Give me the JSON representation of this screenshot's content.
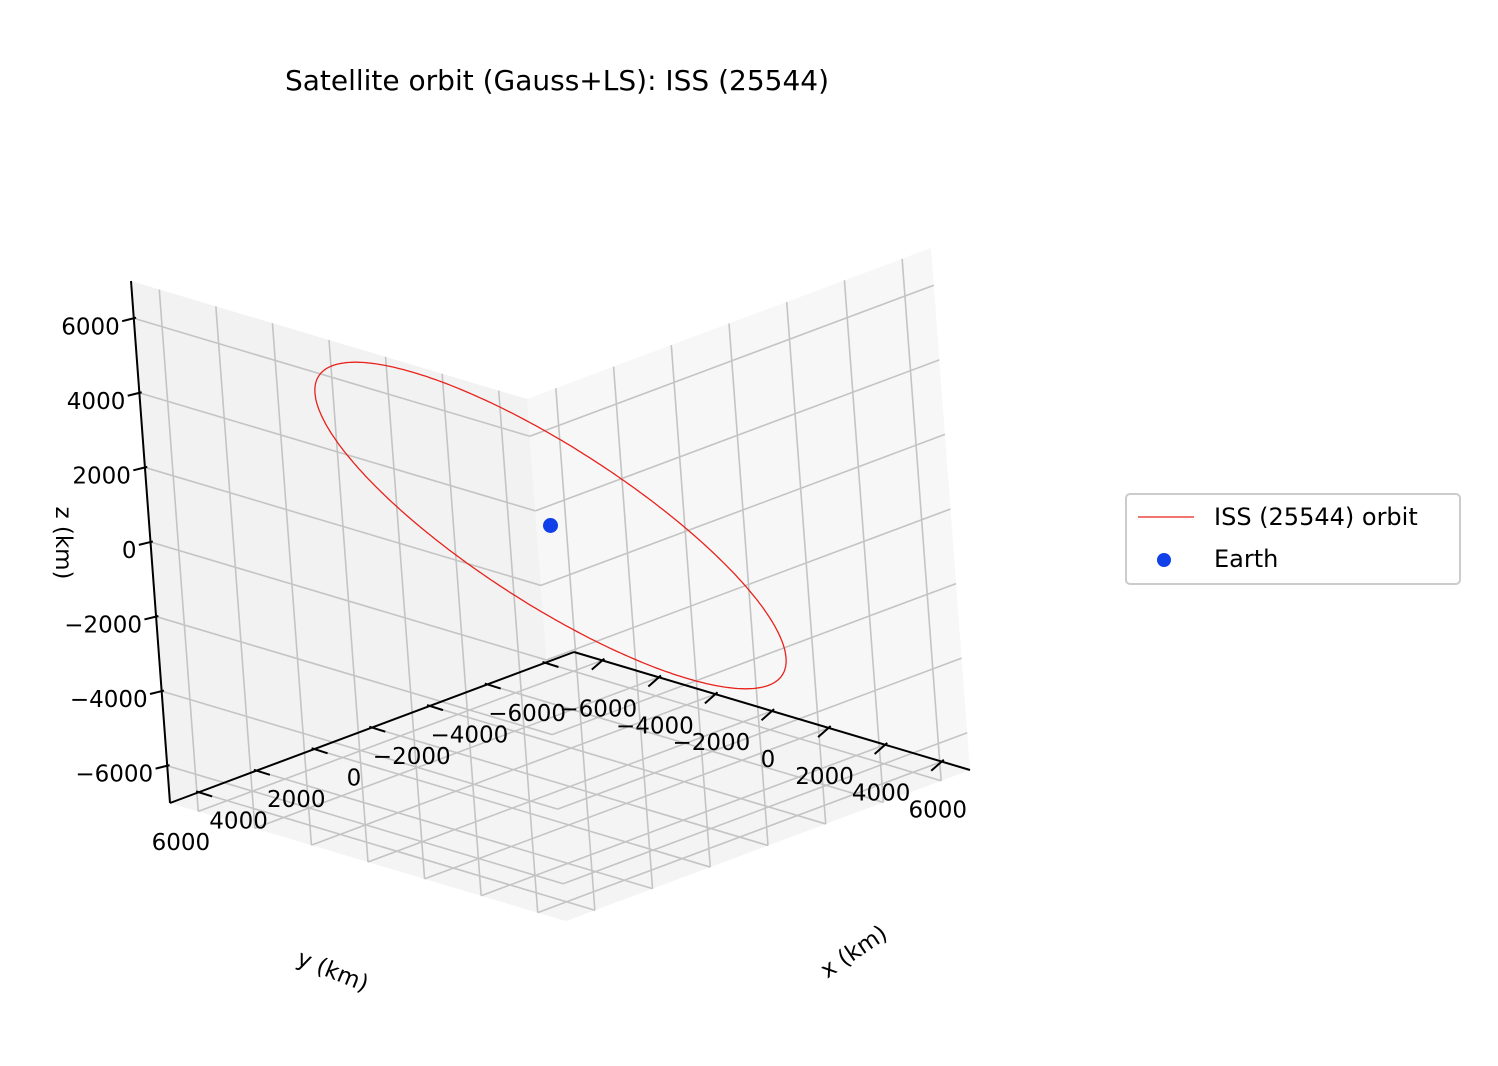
{
  "chart_data": {
    "type": "line3d",
    "title": "Satellite orbit (Gauss+LS): ISS (25544)",
    "xlabel": "x (km)",
    "ylabel": "y (km)",
    "zlabel": "z (km)",
    "x_ticks": [
      "−6000",
      "−4000",
      "−2000",
      "0",
      "2000",
      "4000",
      "6000"
    ],
    "y_ticks": [
      "6000",
      "4000",
      "2000",
      "0",
      "−2000",
      "−4000",
      "−6000"
    ],
    "z_ticks": [
      "−6000",
      "−4000",
      "−2000",
      "0",
      "2000",
      "4000",
      "6000"
    ],
    "xlim": [
      -7000,
      7000
    ],
    "ylim": [
      -7000,
      7000
    ],
    "zlim": [
      -7000,
      7000
    ],
    "grid": true,
    "legend_position": "right",
    "series": [
      {
        "name": "ISS (25544) orbit",
        "kind": "line",
        "color": "#e8221b",
        "radius": 6790,
        "inclination_deg": 51.6,
        "raan_deg": 0
      },
      {
        "name": "Earth",
        "kind": "point",
        "color": "#1240e8",
        "x": 0,
        "y": 0,
        "z": 0
      }
    ]
  }
}
